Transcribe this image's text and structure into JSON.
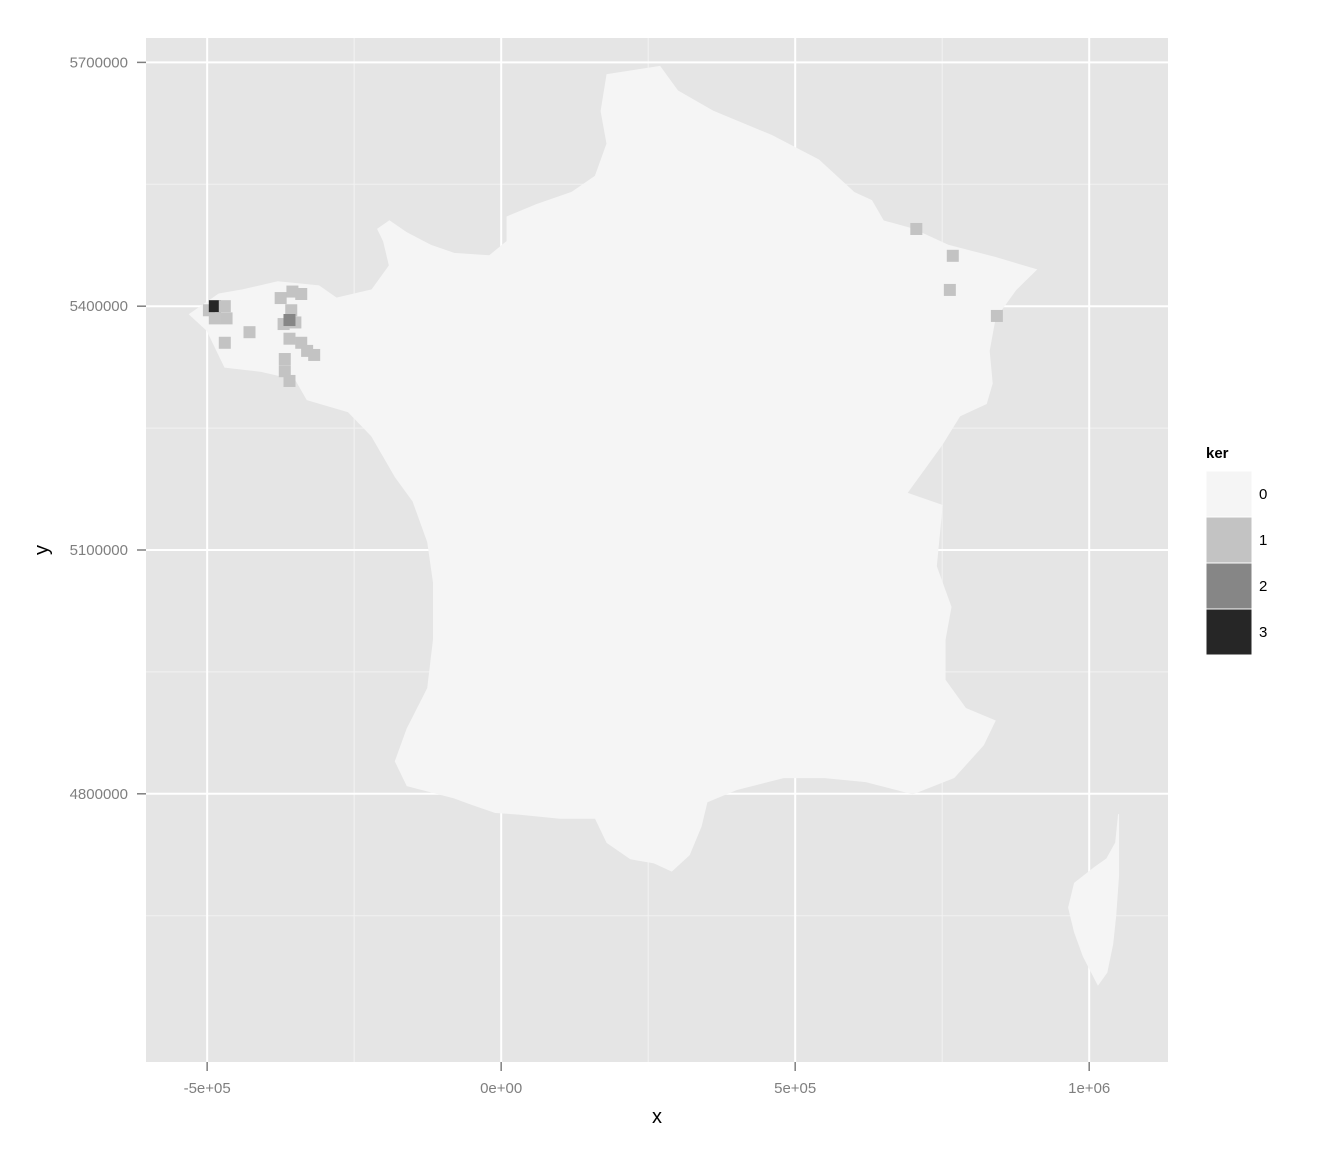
{
  "chart_data": {
    "type": "heatmap",
    "title": "",
    "xlabel": "x",
    "ylabel": "y",
    "xlim": [
      -604000,
      1134000
    ],
    "ylim": [
      4470000,
      5730000
    ],
    "x_ticks": [
      {
        "value": -500000,
        "label": "-5e+05"
      },
      {
        "value": 0,
        "label": "0e+00"
      },
      {
        "value": 500000,
        "label": "5e+05"
      },
      {
        "value": 1000000,
        "label": "1e+06"
      }
    ],
    "y_ticks": [
      {
        "value": 4800000,
        "label": "4800000"
      },
      {
        "value": 5100000,
        "label": "5100000"
      },
      {
        "value": 5400000,
        "label": "5400000"
      },
      {
        "value": 5700000,
        "label": "5700000"
      }
    ],
    "grid": true,
    "legend": {
      "title": "ker",
      "position": "right",
      "entries": [
        {
          "label": "0",
          "color": "#f5f5f5"
        },
        {
          "label": "1",
          "color": "#c3c3c3"
        },
        {
          "label": "2",
          "color": "#868686"
        },
        {
          "label": "3",
          "color": "#262626"
        }
      ]
    },
    "regions": [
      {
        "name": "mainland",
        "value": 0,
        "outline": [
          [
            180000,
            5685000
          ],
          [
            270000,
            5695000
          ],
          [
            300000,
            5665000
          ],
          [
            360000,
            5640000
          ],
          [
            460000,
            5610000
          ],
          [
            540000,
            5580000
          ],
          [
            600000,
            5540000
          ],
          [
            630000,
            5530000
          ],
          [
            650000,
            5505000
          ],
          [
            700000,
            5495000
          ],
          [
            760000,
            5475000
          ],
          [
            840000,
            5460000
          ],
          [
            910000,
            5445000
          ],
          [
            875000,
            5420000
          ],
          [
            840000,
            5385000
          ],
          [
            830000,
            5345000
          ],
          [
            835000,
            5305000
          ],
          [
            825000,
            5280000
          ],
          [
            780000,
            5265000
          ],
          [
            750000,
            5230000
          ],
          [
            720000,
            5200000
          ],
          [
            690000,
            5170000
          ],
          [
            750000,
            5155000
          ],
          [
            740000,
            5080000
          ],
          [
            765000,
            5030000
          ],
          [
            755000,
            4990000
          ],
          [
            755000,
            4940000
          ],
          [
            790000,
            4905000
          ],
          [
            840000,
            4890000
          ],
          [
            820000,
            4860000
          ],
          [
            770000,
            4820000
          ],
          [
            700000,
            4800000
          ],
          [
            620000,
            4815000
          ],
          [
            550000,
            4820000
          ],
          [
            480000,
            4820000
          ],
          [
            400000,
            4805000
          ],
          [
            350000,
            4790000
          ],
          [
            340000,
            4760000
          ],
          [
            320000,
            4725000
          ],
          [
            290000,
            4705000
          ],
          [
            260000,
            4715000
          ],
          [
            220000,
            4720000
          ],
          [
            180000,
            4740000
          ],
          [
            160000,
            4770000
          ],
          [
            100000,
            4770000
          ],
          [
            30000,
            4775000
          ],
          [
            -10000,
            4777000
          ],
          [
            -50000,
            4787000
          ],
          [
            -80000,
            4795000
          ],
          [
            -160000,
            4810000
          ],
          [
            -180000,
            4840000
          ],
          [
            -160000,
            4880000
          ],
          [
            -125000,
            4930000
          ],
          [
            -115000,
            4990000
          ],
          [
            -115000,
            5060000
          ],
          [
            -125000,
            5110000
          ],
          [
            -150000,
            5160000
          ],
          [
            -180000,
            5190000
          ],
          [
            -220000,
            5240000
          ],
          [
            -260000,
            5270000
          ],
          [
            -330000,
            5285000
          ],
          [
            -350000,
            5310000
          ],
          [
            -410000,
            5320000
          ],
          [
            -470000,
            5325000
          ],
          [
            -500000,
            5370000
          ],
          [
            -530000,
            5390000
          ],
          [
            -480000,
            5415000
          ],
          [
            -440000,
            5420000
          ],
          [
            -380000,
            5430000
          ],
          [
            -310000,
            5425000
          ],
          [
            -280000,
            5410000
          ],
          [
            -220000,
            5420000
          ],
          [
            -190000,
            5450000
          ],
          [
            -200000,
            5480000
          ],
          [
            -210000,
            5495000
          ],
          [
            -190000,
            5505000
          ],
          [
            -160000,
            5490000
          ],
          [
            -120000,
            5475000
          ],
          [
            -80000,
            5465000
          ],
          [
            -20000,
            5462000
          ],
          [
            10000,
            5480000
          ],
          [
            10000,
            5510000
          ],
          [
            60000,
            5525000
          ],
          [
            120000,
            5540000
          ],
          [
            160000,
            5560000
          ],
          [
            180000,
            5600000
          ],
          [
            170000,
            5640000
          ]
        ]
      },
      {
        "name": "corsica",
        "value": 0,
        "outline": [
          [
            1050000,
            4775000
          ],
          [
            1045000,
            4740000
          ],
          [
            1030000,
            4720000
          ],
          [
            1010000,
            4710000
          ],
          [
            975000,
            4690000
          ],
          [
            965000,
            4660000
          ],
          [
            975000,
            4630000
          ],
          [
            990000,
            4600000
          ],
          [
            1015000,
            4565000
          ],
          [
            1030000,
            4580000
          ],
          [
            1040000,
            4615000
          ],
          [
            1045000,
            4650000
          ],
          [
            1050000,
            4700000
          ]
        ]
      }
    ],
    "cells": [
      {
        "x": -497000,
        "y": 5395000,
        "value": 1
      },
      {
        "x": -487000,
        "y": 5400000,
        "value": 3
      },
      {
        "x": -487000,
        "y": 5385000,
        "value": 1
      },
      {
        "x": -470000,
        "y": 5400000,
        "value": 1
      },
      {
        "x": -467000,
        "y": 5385000,
        "value": 1
      },
      {
        "x": -470000,
        "y": 5355000,
        "value": 1
      },
      {
        "x": -428000,
        "y": 5368000,
        "value": 1
      },
      {
        "x": -375000,
        "y": 5410000,
        "value": 1
      },
      {
        "x": -355000,
        "y": 5418000,
        "value": 1
      },
      {
        "x": -340000,
        "y": 5415000,
        "value": 1
      },
      {
        "x": -357000,
        "y": 5395000,
        "value": 1
      },
      {
        "x": -370000,
        "y": 5378000,
        "value": 1
      },
      {
        "x": -350000,
        "y": 5380000,
        "value": 1
      },
      {
        "x": -360000,
        "y": 5383000,
        "value": 2
      },
      {
        "x": -360000,
        "y": 5360000,
        "value": 1
      },
      {
        "x": -340000,
        "y": 5355000,
        "value": 1
      },
      {
        "x": -330000,
        "y": 5345000,
        "value": 1
      },
      {
        "x": -318000,
        "y": 5340000,
        "value": 1
      },
      {
        "x": -368000,
        "y": 5335000,
        "value": 1
      },
      {
        "x": -368000,
        "y": 5320000,
        "value": 1
      },
      {
        "x": -360000,
        "y": 5308000,
        "value": 1
      },
      {
        "x": 706000,
        "y": 5495000,
        "value": 1
      },
      {
        "x": 768000,
        "y": 5462000,
        "value": 1
      },
      {
        "x": 763000,
        "y": 5420000,
        "value": 1
      },
      {
        "x": 843000,
        "y": 5388000,
        "value": 1
      }
    ]
  }
}
